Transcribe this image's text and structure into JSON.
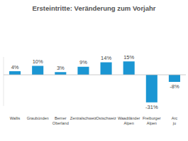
{
  "chart_data": {
    "type": "bar",
    "title": "Ersteintritte: Veränderung zum Vorjahr",
    "categories": [
      "Wallis",
      "Graubünden",
      "Berner Oberland",
      "Zentralschweiz",
      "Ostschweiz",
      "Waadtländer Alpen",
      "Freiburger Alpen",
      "Arc ju"
    ],
    "values": [
      4,
      10,
      3,
      9,
      14,
      15,
      -31,
      -8
    ],
    "value_labels": [
      "4%",
      "10%",
      "3%",
      "9%",
      "14%",
      "15%",
      "-31%",
      "-8%"
    ],
    "color": "#1b96d3",
    "ylim": [
      -35,
      20
    ],
    "yticks": [],
    "grid": false,
    "data_labels": true,
    "tick_labels": "x"
  }
}
